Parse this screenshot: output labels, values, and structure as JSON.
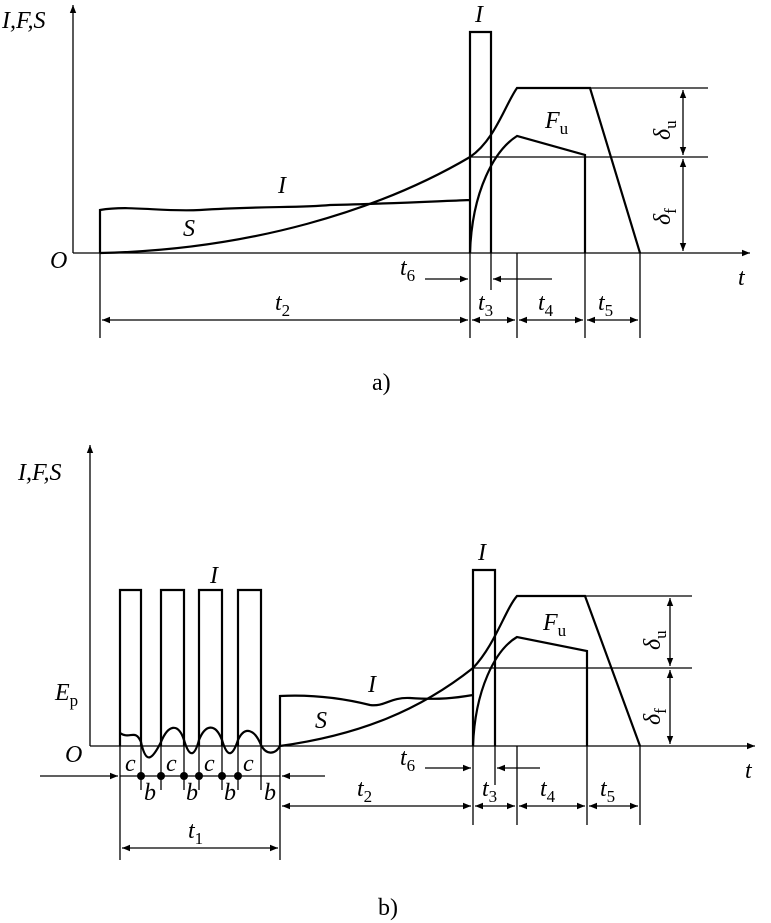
{
  "panel_a": {
    "y_axis": "I,F,S",
    "origin": "O",
    "x_axis": "t",
    "current_peak": "I",
    "current_curve": "I",
    "displacement_curve": "S",
    "force": {
      "base": "F",
      "sub": "u"
    },
    "delta_u": {
      "base": "δ",
      "sub": "u"
    },
    "delta_f": {
      "base": "δ",
      "sub": "f"
    },
    "t2": {
      "base": "t",
      "sub": "2"
    },
    "t6": {
      "base": "t",
      "sub": "6"
    },
    "t3": {
      "base": "t",
      "sub": "3"
    },
    "t4": {
      "base": "t",
      "sub": "4"
    },
    "t5": {
      "base": "t",
      "sub": "5"
    },
    "caption": "a)"
  },
  "panel_b": {
    "y_axis": "I,F,S",
    "origin": "O",
    "x_axis": "t",
    "ep": {
      "base": "E",
      "sub": "p"
    },
    "pulse_current": "I",
    "current_peak": "I",
    "current_curve": "I",
    "displacement_curve": "S",
    "force": {
      "base": "F",
      "sub": "u"
    },
    "delta_u": {
      "base": "δ",
      "sub": "u"
    },
    "delta_f": {
      "base": "δ",
      "sub": "f"
    },
    "c_labels": [
      "c",
      "c",
      "c",
      "c"
    ],
    "b_labels": [
      "b",
      "b",
      "b",
      "b"
    ],
    "t1": {
      "base": "t",
      "sub": "1"
    },
    "t2": {
      "base": "t",
      "sub": "2"
    },
    "t6": {
      "base": "t",
      "sub": "6"
    },
    "t3": {
      "base": "t",
      "sub": "3"
    },
    "t4": {
      "base": "t",
      "sub": "4"
    },
    "t5": {
      "base": "t",
      "sub": "5"
    },
    "caption": "b)"
  }
}
